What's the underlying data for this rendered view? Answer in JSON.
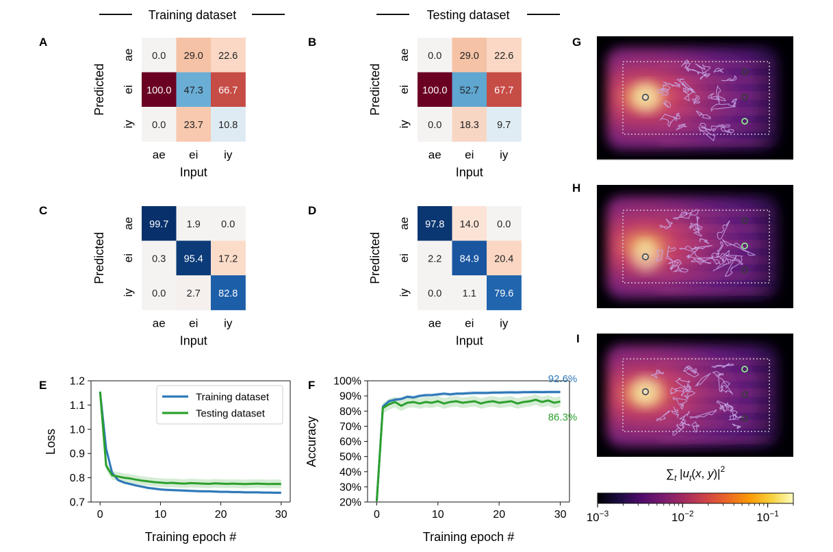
{
  "headers": {
    "training": "Training dataset",
    "testing": "Testing dataset"
  },
  "panel_labels": [
    "A",
    "B",
    "C",
    "D",
    "E",
    "F",
    "G",
    "H",
    "I"
  ],
  "colors": {
    "train": "#2d78b8",
    "test": "#2ca02c",
    "diverge_neg": "#053061",
    "diverge_mid": "#f7f7f7",
    "diverge_pos": "#67001f",
    "magma": [
      "#000004",
      "#1b0c41",
      "#4f0c6b",
      "#781c6d",
      "#a52c60",
      "#cf4446",
      "#ed6925",
      "#fb9b06",
      "#f7d13d",
      "#fcfdbf"
    ],
    "probe_active": "#90ee90",
    "probe_inactive": "#3a3a3a",
    "contour": "#c8a8e8",
    "box": "#dddddd"
  },
  "chart_data": [
    {
      "id": "A",
      "type": "heatmap",
      "xlabel": "Input",
      "ylabel": "Predicted",
      "x_categories": [
        "ae",
        "ei",
        "iy"
      ],
      "y_categories": [
        "ae",
        "ei",
        "iy"
      ],
      "values": [
        [
          0.0,
          29.0,
          22.6
        ],
        [
          100.0,
          47.3,
          66.7
        ],
        [
          0.0,
          23.7,
          10.8
        ]
      ],
      "colors": [
        [
          "#f5f3f2",
          "#f5c2a5",
          "#fad8c5"
        ],
        [
          "#6a0122",
          "#6aaed6",
          "#c64c46"
        ],
        [
          "#f5f3f2",
          "#f8c9ae",
          "#dfebf2"
        ]
      ]
    },
    {
      "id": "B",
      "type": "heatmap",
      "xlabel": "Input",
      "ylabel": "Predicted",
      "x_categories": [
        "ae",
        "ei",
        "iy"
      ],
      "y_categories": [
        "ae",
        "ei",
        "iy"
      ],
      "values": [
        [
          0.0,
          29.0,
          22.6
        ],
        [
          100.0,
          52.7,
          67.7
        ],
        [
          0.0,
          18.3,
          9.7
        ]
      ],
      "colors": [
        [
          "#f5f3f2",
          "#f5c2a5",
          "#fad8c5"
        ],
        [
          "#6a0122",
          "#5fa6d0",
          "#c64c46"
        ],
        [
          "#f5f3f2",
          "#f8d6c4",
          "#e0ecf3"
        ]
      ]
    },
    {
      "id": "C",
      "type": "heatmap",
      "xlabel": "Input",
      "ylabel": "Predicted",
      "x_categories": [
        "ae",
        "ei",
        "iy"
      ],
      "y_categories": [
        "ae",
        "ei",
        "iy"
      ],
      "values": [
        [
          99.7,
          1.9,
          0.0
        ],
        [
          0.3,
          95.4,
          17.2
        ],
        [
          0.0,
          2.7,
          82.8
        ]
      ],
      "colors": [
        [
          "#08306b",
          "#f5f3f2",
          "#f5f3f2"
        ],
        [
          "#f5f3f2",
          "#0b3b78",
          "#fbdcc9"
        ],
        [
          "#f5f3f2",
          "#f5f0ee",
          "#1d5ea8"
        ]
      ]
    },
    {
      "id": "D",
      "type": "heatmap",
      "xlabel": "Input",
      "ylabel": "Predicted",
      "x_categories": [
        "ae",
        "ei",
        "iy"
      ],
      "y_categories": [
        "ae",
        "ei",
        "iy"
      ],
      "values": [
        [
          97.8,
          14.0,
          0.0
        ],
        [
          2.2,
          84.9,
          20.4
        ],
        [
          0.0,
          1.1,
          79.6
        ]
      ],
      "colors": [
        [
          "#0a3672",
          "#fbe3d6",
          "#f5f3f2"
        ],
        [
          "#f5f3f2",
          "#1a56a0",
          "#fbd7c3"
        ],
        [
          "#f5f3f2",
          "#f5f3f2",
          "#2065ae"
        ]
      ]
    },
    {
      "id": "E",
      "type": "line",
      "xlabel": "Training epoch #",
      "ylabel": "Loss",
      "xlim": [
        -1.5,
        31.5
      ],
      "ylim": [
        0.7,
        1.2
      ],
      "xticks": [
        0,
        10,
        20,
        30
      ],
      "yticks": [
        0.7,
        0.8,
        0.9,
        1.0,
        1.1,
        1.2
      ],
      "ytick_labels": [
        "0.7",
        "0.8",
        "0.9",
        "1.0",
        "1.1",
        "1.2"
      ],
      "legend": "top-right",
      "series": [
        {
          "name": "Training dataset",
          "color": "#2d78b8",
          "x": [
            0,
            1,
            2,
            3,
            4,
            5,
            6,
            7,
            8,
            9,
            10,
            11,
            12,
            13,
            14,
            15,
            16,
            17,
            18,
            19,
            20,
            21,
            22,
            23,
            24,
            25,
            26,
            27,
            28,
            29,
            30
          ],
          "y": [
            1.155,
            0.92,
            0.82,
            0.79,
            0.78,
            0.774,
            0.768,
            0.763,
            0.758,
            0.755,
            0.752,
            0.75,
            0.749,
            0.748,
            0.747,
            0.746,
            0.745,
            0.744,
            0.744,
            0.743,
            0.742,
            0.742,
            0.741,
            0.741,
            0.74,
            0.74,
            0.74,
            0.739,
            0.739,
            0.738,
            0.738
          ],
          "band": 0.006
        },
        {
          "name": "Testing dataset",
          "color": "#2ca02c",
          "x": [
            0,
            1,
            2,
            3,
            4,
            5,
            6,
            7,
            8,
            9,
            10,
            11,
            12,
            13,
            14,
            15,
            16,
            17,
            18,
            19,
            20,
            21,
            22,
            23,
            24,
            25,
            26,
            27,
            28,
            29,
            30
          ],
          "y": [
            1.155,
            0.85,
            0.81,
            0.805,
            0.8,
            0.797,
            0.792,
            0.788,
            0.785,
            0.782,
            0.78,
            0.778,
            0.779,
            0.777,
            0.776,
            0.778,
            0.777,
            0.776,
            0.775,
            0.777,
            0.776,
            0.775,
            0.776,
            0.775,
            0.774,
            0.775,
            0.776,
            0.775,
            0.774,
            0.775,
            0.774
          ],
          "band": 0.018
        }
      ]
    },
    {
      "id": "F",
      "type": "line",
      "xlabel": "Training epoch #",
      "ylabel": "Accuracy",
      "xlim": [
        -1.5,
        31.5
      ],
      "ylim": [
        20,
        100
      ],
      "xticks": [
        0,
        10,
        20,
        30
      ],
      "yticks": [
        20,
        30,
        40,
        50,
        60,
        70,
        80,
        90,
        100
      ],
      "ytick_labels": [
        "20%",
        "30%",
        "40%",
        "50%",
        "60%",
        "70%",
        "80%",
        "90%",
        "100%"
      ],
      "annotations": [
        {
          "text": "92.6%",
          "series": "Training dataset"
        },
        {
          "text": "86.3%",
          "series": "Testing dataset"
        }
      ],
      "series": [
        {
          "name": "Training dataset",
          "color": "#2d78b8",
          "x": [
            0,
            1,
            2,
            3,
            4,
            5,
            6,
            7,
            8,
            9,
            10,
            11,
            12,
            13,
            14,
            15,
            16,
            17,
            18,
            19,
            20,
            21,
            22,
            23,
            24,
            25,
            26,
            27,
            28,
            29,
            30
          ],
          "y": [
            20.5,
            83.0,
            86.5,
            87.5,
            88.0,
            89.5,
            89.0,
            90.0,
            90.5,
            90.5,
            91.0,
            91.5,
            91.0,
            91.5,
            91.5,
            91.8,
            92.0,
            92.0,
            92.0,
            92.2,
            92.2,
            92.3,
            92.4,
            92.3,
            92.5,
            92.5,
            92.6,
            92.5,
            92.6,
            92.6,
            92.6
          ],
          "band": 1.2
        },
        {
          "name": "Testing dataset",
          "color": "#2ca02c",
          "x": [
            0,
            1,
            2,
            3,
            4,
            5,
            6,
            7,
            8,
            9,
            10,
            11,
            12,
            13,
            14,
            15,
            16,
            17,
            18,
            19,
            20,
            21,
            22,
            23,
            24,
            25,
            26,
            27,
            28,
            29,
            30
          ],
          "y": [
            20.5,
            82.0,
            84.5,
            86.0,
            83.5,
            85.5,
            86.0,
            85.0,
            86.0,
            85.5,
            86.5,
            85.0,
            86.0,
            86.5,
            85.5,
            86.0,
            86.5,
            85.0,
            86.0,
            86.5,
            85.5,
            86.0,
            86.5,
            85.0,
            86.0,
            86.5,
            87.5,
            86.0,
            87.0,
            85.5,
            86.3
          ],
          "band": 3.5
        }
      ]
    },
    {
      "id": "cbar",
      "type": "heatmap",
      "label": "∑t |ut(x,y)|²",
      "scale": "log",
      "range": [
        0.001,
        0.2
      ],
      "tick_labels": [
        "10−3",
        "10−2",
        "10−1"
      ]
    }
  ]
}
